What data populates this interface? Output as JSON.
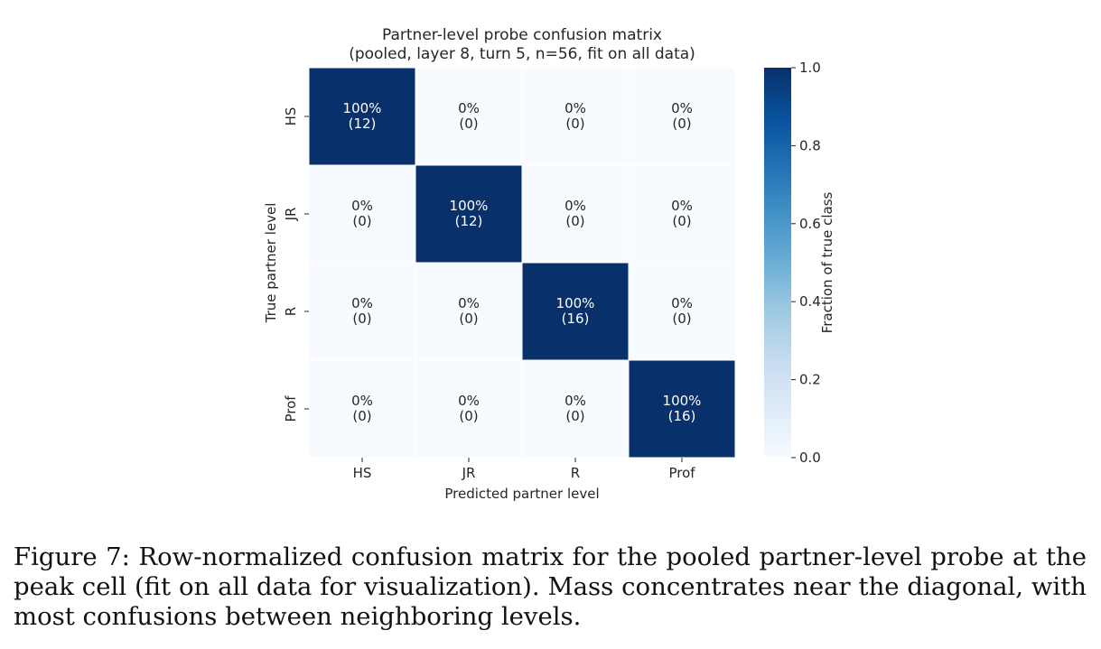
{
  "chart_data": {
    "type": "heatmap",
    "title": "Partner-level probe confusion matrix",
    "subtitle": "(pooled, layer 8, turn 5, n=56, fit on all data)",
    "xlabel": "Predicted partner level",
    "ylabel": "True partner level",
    "x_categories": [
      "HS",
      "JR",
      "R",
      "Prof"
    ],
    "y_categories": [
      "HS",
      "JR",
      "R",
      "Prof"
    ],
    "values": [
      [
        1.0,
        0.0,
        0.0,
        0.0
      ],
      [
        0.0,
        1.0,
        0.0,
        0.0
      ],
      [
        0.0,
        0.0,
        1.0,
        0.0
      ],
      [
        0.0,
        0.0,
        0.0,
        1.0
      ]
    ],
    "counts": [
      [
        12,
        0,
        0,
        0
      ],
      [
        0,
        12,
        0,
        0
      ],
      [
        0,
        0,
        16,
        0
      ],
      [
        0,
        0,
        0,
        16
      ]
    ],
    "cell_labels": [
      [
        [
          "100%",
          "(12)"
        ],
        [
          "0%",
          "(0)"
        ],
        [
          "0%",
          "(0)"
        ],
        [
          "0%",
          "(0)"
        ]
      ],
      [
        [
          "0%",
          "(0)"
        ],
        [
          "100%",
          "(12)"
        ],
        [
          "0%",
          "(0)"
        ],
        [
          "0%",
          "(0)"
        ]
      ],
      [
        [
          "0%",
          "(0)"
        ],
        [
          "0%",
          "(0)"
        ],
        [
          "100%",
          "(16)"
        ],
        [
          "0%",
          "(0)"
        ]
      ],
      [
        [
          "0%",
          "(0)"
        ],
        [
          "0%",
          "(0)"
        ],
        [
          "0%",
          "(0)"
        ],
        [
          "100%",
          "(16)"
        ]
      ]
    ],
    "colorbar": {
      "label": "Fraction of true class",
      "range": [
        0.0,
        1.0
      ],
      "ticks": [
        "0.0",
        "0.2",
        "0.4",
        "0.6",
        "0.8",
        "1.0"
      ],
      "colormap": "Blues",
      "low_color": "#f7fbff",
      "high_color": "#08306b"
    },
    "grid": false,
    "legend": "colorbar-right"
  },
  "caption": {
    "text": "Figure 7: Row-normalized confusion matrix for the pooled partner-level probe at the peak cell (fit on all data for visualization).  Mass concentrates near the diagonal, with most confusions between neighboring levels."
  },
  "colors": {
    "text_dark": "#262626",
    "text_on_dark": "#ffffff",
    "cell_border": "#ffffff",
    "axis": "#262626"
  }
}
